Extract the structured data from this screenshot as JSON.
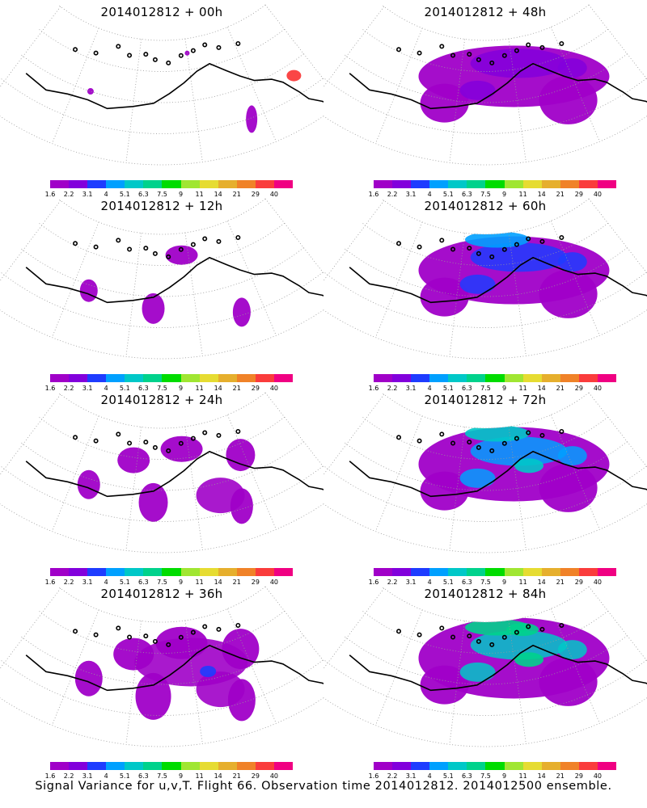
{
  "panels": [
    {
      "id": "p00",
      "title": "2014012812 + 00h",
      "spread_level": 0,
      "max_color_index": 11
    },
    {
      "id": "p48",
      "title": "2014012812 + 48h",
      "spread_level": 4,
      "max_color_index": 1
    },
    {
      "id": "p12",
      "title": "2014012812 + 12h",
      "spread_level": 1,
      "max_color_index": 0
    },
    {
      "id": "p60",
      "title": "2014012812 + 60h",
      "spread_level": 5,
      "max_color_index": 3
    },
    {
      "id": "p24",
      "title": "2014012812 + 24h",
      "spread_level": 2,
      "max_color_index": 1
    },
    {
      "id": "p72",
      "title": "2014012812 + 72h",
      "spread_level": 6,
      "max_color_index": 4
    },
    {
      "id": "p36",
      "title": "2014012812 + 36h",
      "spread_level": 3,
      "max_color_index": 2
    },
    {
      "id": "p84",
      "title": "2014012812 + 84h",
      "spread_level": 7,
      "max_color_index": 5
    }
  ],
  "legend": {
    "labels": [
      "1.6",
      "2.2",
      "3.1",
      "4",
      "5.1",
      "6.3",
      "7.5",
      "9",
      "11",
      "14",
      "21",
      "29",
      "40"
    ],
    "colors": [
      "#a000c8",
      "#8200dc",
      "#1e3cff",
      "#00a0ff",
      "#00c8c8",
      "#00d28c",
      "#00dc00",
      "#a0e632",
      "#e6dc32",
      "#e6af2d",
      "#f08228",
      "#fa3c3c",
      "#f00082"
    ]
  },
  "footer": "Signal Variance for u,v,T. Flight 66. Observation time 2014012812. 2014012500 ensemble."
}
